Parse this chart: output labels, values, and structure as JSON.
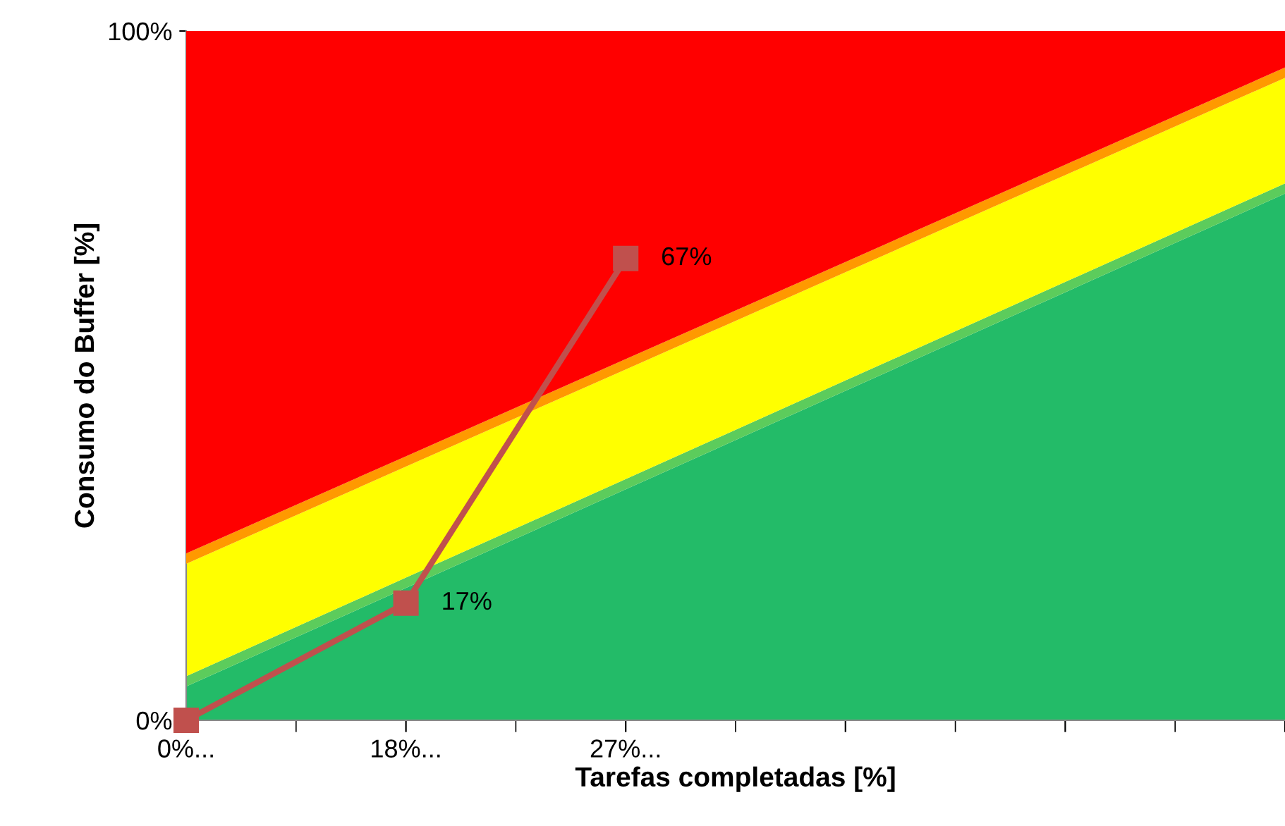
{
  "chart_data": {
    "type": "area",
    "stacked": true,
    "xlabel": "Tarefas completadas [%]",
    "ylabel": "Consumo do Buffer [%]",
    "categories": [
      "0%...",
      "18%...",
      "27%...",
      null,
      null,
      null
    ],
    "ylim": [
      0,
      100
    ],
    "yticks": [
      {
        "value": 0,
        "label": "0%"
      },
      {
        "value": 100,
        "label": "100%"
      }
    ],
    "grid": false,
    "series": [
      {
        "color": "#23bb68",
        "values": [
          4.9,
          19.2,
          33.5,
          47.8,
          62.1,
          76.4
        ]
      },
      {
        "color": "#5ccc5c",
        "values": [
          1.5,
          1.5,
          1.5,
          1.5,
          1.5,
          1.5
        ]
      },
      {
        "color": "#ffff00",
        "values": [
          16.3,
          16.1,
          15.9,
          15.7,
          15.5,
          15.3
        ]
      },
      {
        "color": "#ff9900",
        "values": [
          1.5,
          1.5,
          1.5,
          1.5,
          1.5,
          1.5
        ]
      },
      {
        "color": "#ff0000",
        "values": [
          75.8,
          61.7,
          47.6,
          33.5,
          19.4,
          5.3
        ]
      },
      {
        "type": "line",
        "color": "#c0504d",
        "marker": "square",
        "values": [
          0,
          17,
          67,
          null,
          null,
          null
        ],
        "value_labels": [
          null,
          "17%",
          "67%",
          null,
          null,
          null
        ]
      }
    ]
  }
}
